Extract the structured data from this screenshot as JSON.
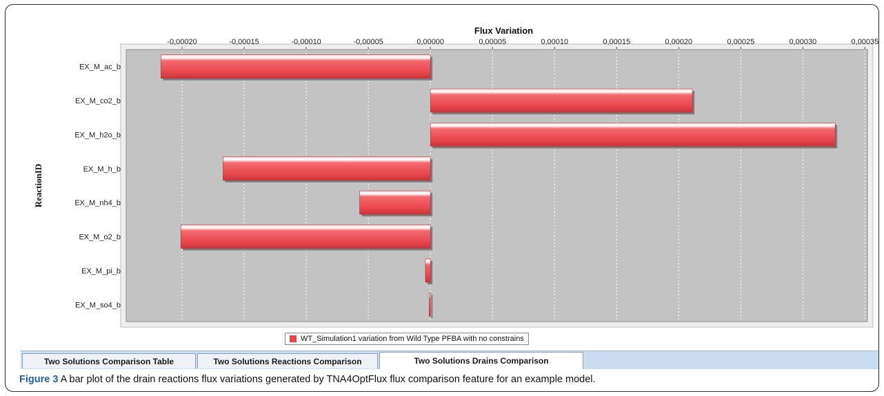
{
  "chart_data": {
    "type": "bar",
    "orientation": "horizontal",
    "title": "Flux Variation",
    "ylabel": "ReactionID",
    "xlabel": "",
    "categories": [
      "EX_M_ac_b",
      "EX_M_co2_b",
      "EX_M_h2o_b",
      "EX_M_h_b",
      "EX_M_nh4_b",
      "EX_M_o2_b",
      "EX_M_pi_b",
      "EX_M_so4_b"
    ],
    "series": [
      {
        "name": "WT_Simulation1 variation from Wild Type PFBA with no constrains",
        "values": [
          -0.000217,
          0.000211,
          0.000326,
          -0.000167,
          -5.7e-05,
          -0.000201,
          -4e-06,
          -1e-06
        ]
      }
    ],
    "xlim": [
      -0.000245,
      0.000352
    ],
    "ticks": [
      -0.0002,
      -0.00015,
      -0.0001,
      -5e-05,
      0,
      5e-05,
      0.0001,
      0.00015,
      0.0002,
      0.00025,
      0.0003,
      0.00035
    ],
    "tick_labels": [
      "-0,00020",
      "-0,00015",
      "-0,00010",
      "-0,00005",
      "0,00000",
      "0,00005",
      "0,00010",
      "0,00015",
      "0,00020",
      "0,00025",
      "0,00030",
      "0,00035"
    ],
    "axis_position": "top",
    "grid": true,
    "legend_position": "bottom",
    "colors": {
      "bar": "#e8454b",
      "plot_background": "#c3c3c3"
    }
  },
  "tabs": [
    {
      "label": "Two Solutions Comparison Table",
      "active": false
    },
    {
      "label": "Two Solutions Reactions Comparison",
      "active": false
    },
    {
      "label": "Two Solutions Drains Comparison",
      "active": true
    }
  ],
  "caption": {
    "label": "Figure 3",
    "text": " A bar plot of the drain reactions flux variations generated by TNA4OptFlux flux comparison feature for an example model."
  }
}
